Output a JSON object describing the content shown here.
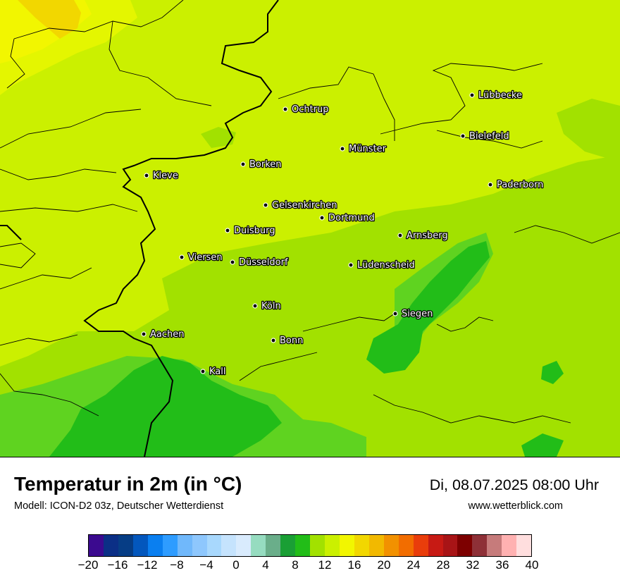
{
  "map": {
    "colors": {
      "base": "#cbf000",
      "warm_region": "#e4f600",
      "yellow": "#f2f600",
      "gold": "#f2d700",
      "light_green": "#a2e100",
      "mid_green": "#5fd320",
      "green": "#22bd18"
    },
    "cities": [
      {
        "name": "Lübbecke"
      },
      {
        "name": "Ochtrup"
      },
      {
        "name": "Bielefeld"
      },
      {
        "name": "Münster"
      },
      {
        "name": "Borken"
      },
      {
        "name": "Kleve"
      },
      {
        "name": "Paderborn"
      },
      {
        "name": "Gelsenkirchen"
      },
      {
        "name": "Dortmund"
      },
      {
        "name": "Duisburg"
      },
      {
        "name": "Arnsberg"
      },
      {
        "name": "Viersen"
      },
      {
        "name": "Düsseldorf"
      },
      {
        "name": "Lüdenscheid"
      },
      {
        "name": "Köln"
      },
      {
        "name": "Siegen"
      },
      {
        "name": "Aachen"
      },
      {
        "name": "Bonn"
      },
      {
        "name": "Kall"
      }
    ]
  },
  "footer": {
    "title": "Temperatur in 2m (in °C)",
    "model": "Modell: ICON-D2 03z, Deutscher Wetterdienst",
    "datetime": "Di, 08.07.2025 08:00 Uhr",
    "source": "www.wetterblick.com"
  },
  "legend": {
    "colors": [
      "#3b0a8f",
      "#0b2f86",
      "#063d85",
      "#0357bd",
      "#0a7ff0",
      "#2e9cff",
      "#70b8fb",
      "#8ec7fd",
      "#a8d8fd",
      "#c5e3fd",
      "#d9ebfd",
      "#96dcc0",
      "#6aae8a",
      "#1a9f35",
      "#22bd18",
      "#a2e100",
      "#cbf000",
      "#f2f600",
      "#f2d700",
      "#f2b900",
      "#f29100",
      "#f26d00",
      "#e93d0b",
      "#c71a14",
      "#a81416",
      "#7d0000",
      "#8e3037",
      "#c67b7b",
      "#ffb1b1",
      "#ffdede"
    ],
    "tick_labels": [
      "−20",
      "−16",
      "−12",
      "−8",
      "−4",
      "0",
      "4",
      "8",
      "12",
      "16",
      "20",
      "24",
      "28",
      "32",
      "36",
      "40"
    ]
  }
}
